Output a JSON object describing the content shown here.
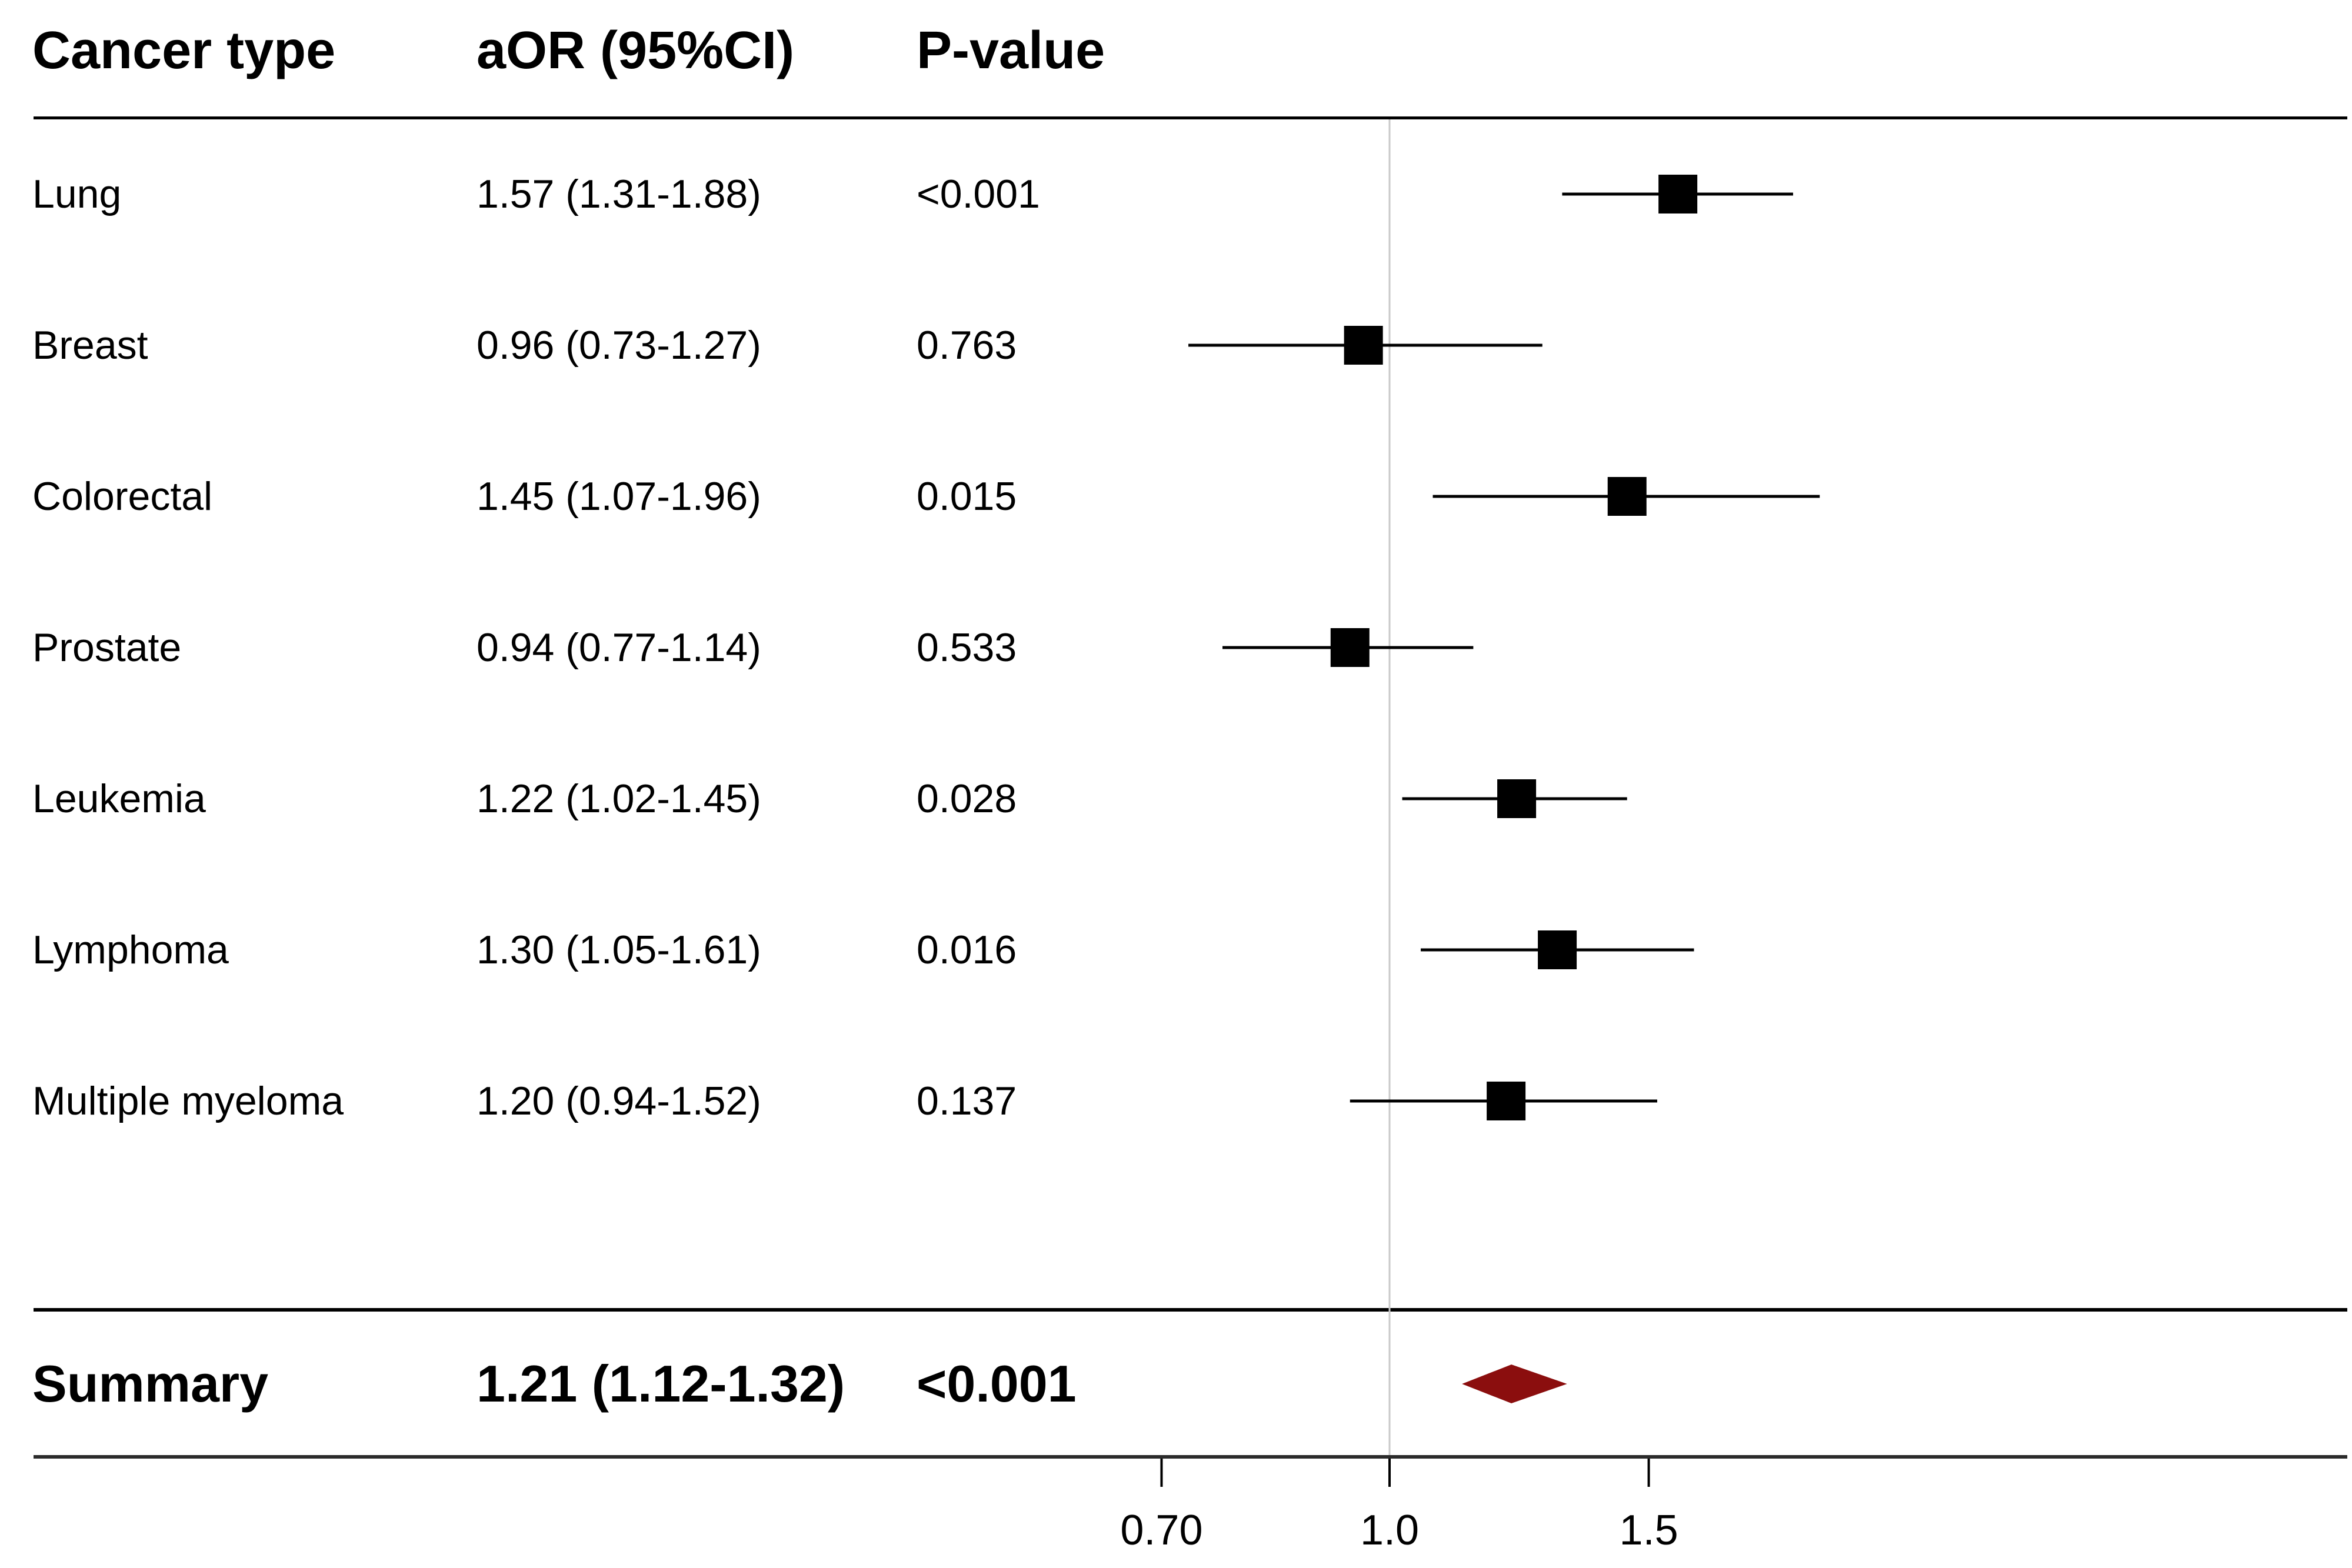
{
  "chart_data": {
    "type": "forest",
    "title": "",
    "columns": {
      "cancer_type": "Cancer type",
      "aor": "aOR (95%CI)",
      "p_value": "P-value"
    },
    "rows": [
      {
        "label": "Lung",
        "aor_text": "1.57 (1.31-1.88)",
        "p_text": "<0.001",
        "est": 1.57,
        "lo": 1.31,
        "hi": 1.88
      },
      {
        "label": "Breast",
        "aor_text": "0.96 (0.73-1.27)",
        "p_text": "0.763",
        "est": 0.96,
        "lo": 0.73,
        "hi": 1.27
      },
      {
        "label": "Colorectal",
        "aor_text": "1.45 (1.07-1.96)",
        "p_text": "0.015",
        "est": 1.45,
        "lo": 1.07,
        "hi": 1.96
      },
      {
        "label": "Prostate",
        "aor_text": "0.94 (0.77-1.14)",
        "p_text": "0.533",
        "est": 0.94,
        "lo": 0.77,
        "hi": 1.14
      },
      {
        "label": "Leukemia",
        "aor_text": "1.22 (1.02-1.45)",
        "p_text": "0.028",
        "est": 1.22,
        "lo": 1.02,
        "hi": 1.45
      },
      {
        "label": "Lymphoma",
        "aor_text": "1.30 (1.05-1.61)",
        "p_text": "0.016",
        "est": 1.3,
        "lo": 1.05,
        "hi": 1.61
      },
      {
        "label": "Multiple myeloma",
        "aor_text": "1.20 (0.94-1.52)",
        "p_text": "0.137",
        "est": 1.2,
        "lo": 0.94,
        "hi": 1.52
      }
    ],
    "summary": {
      "label": "Summary",
      "aor_text": "1.21 (1.12-1.32)",
      "p_text": "<0.001",
      "est": 1.21,
      "lo": 1.12,
      "hi": 1.32
    },
    "axis": {
      "scale": "log",
      "tick_labels": [
        "0.70",
        "1.0",
        "1.5"
      ],
      "tick_values": [
        0.7,
        1.0,
        1.5
      ],
      "reference_value": 1.0
    },
    "colors": {
      "marker": "#000000",
      "ci_line": "#000000",
      "summary_diamond": "#8B0E0E",
      "reference_line": "#C9C9C9",
      "axis_line": "#2B2B2B",
      "rule": "#000000"
    },
    "legend": null,
    "grid": "off"
  }
}
